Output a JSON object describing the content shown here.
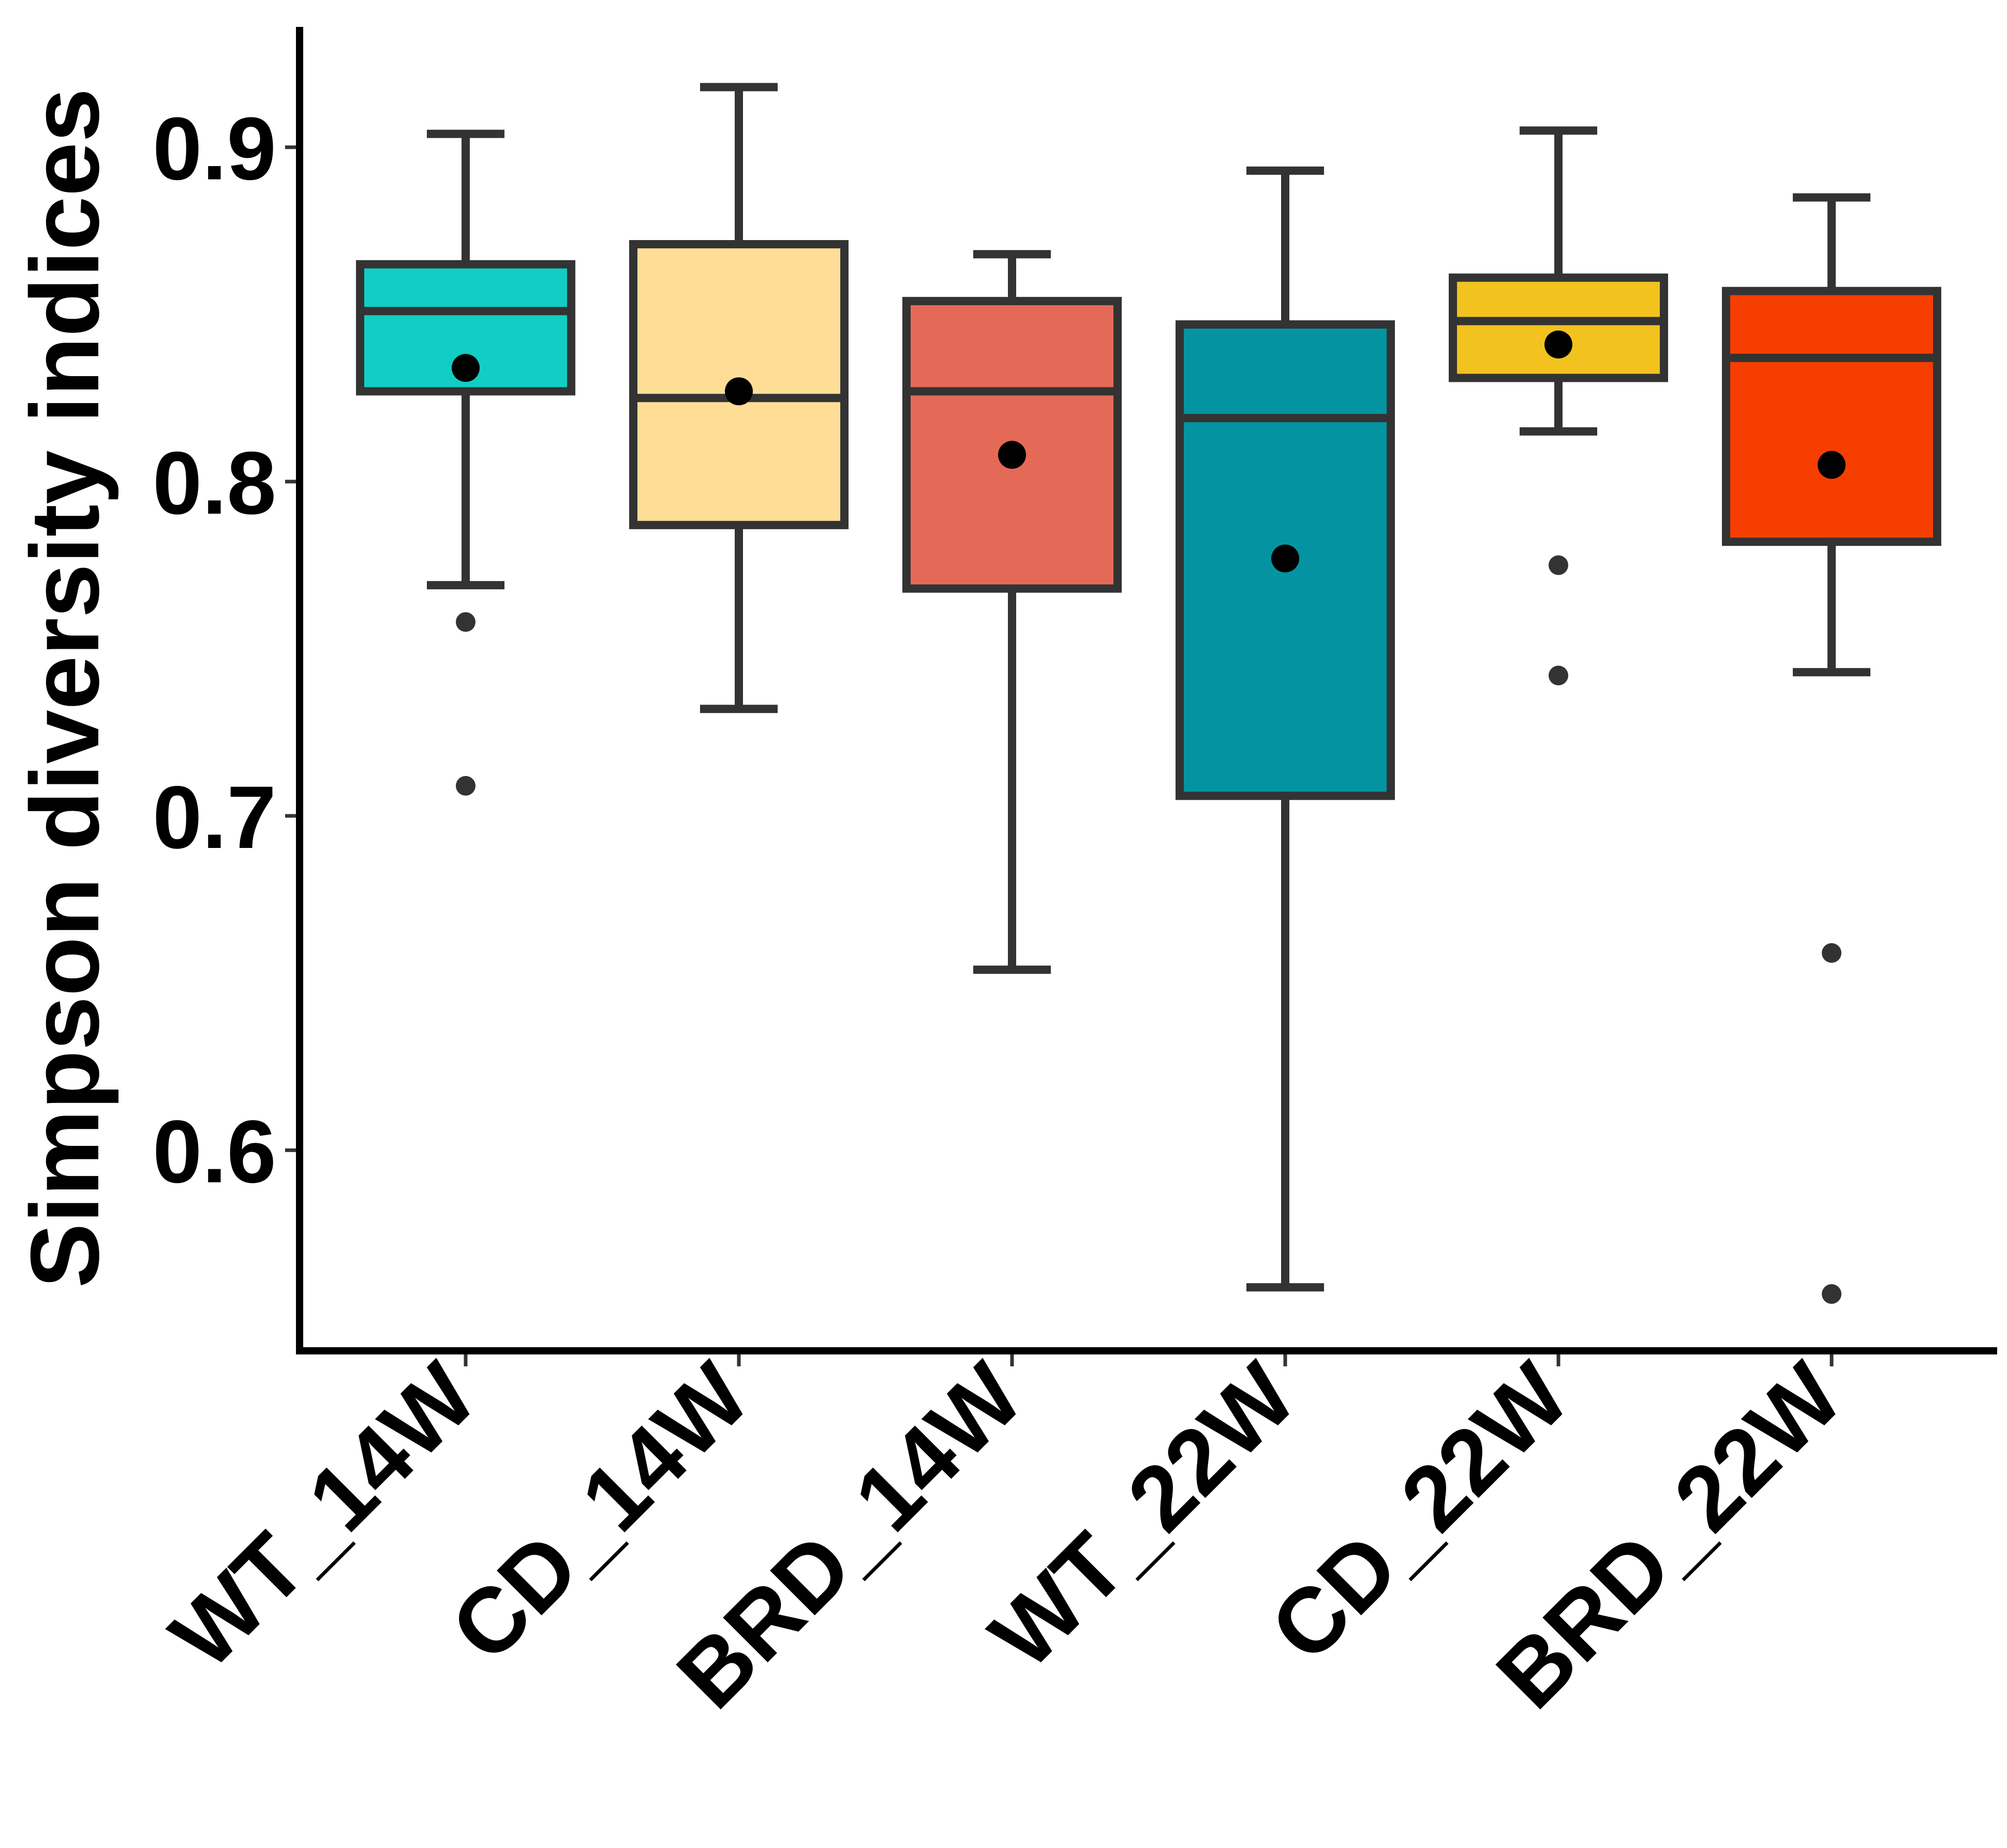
{
  "chart_data": {
    "type": "box",
    "title": "",
    "xlabel": "",
    "ylabel": "Simpson diversity indices",
    "ylim": [
      0.54,
      0.936
    ],
    "yticks": [
      {
        "value": 0.6,
        "label": "0.6"
      },
      {
        "value": 0.7,
        "label": "0.7"
      },
      {
        "value": 0.8,
        "label": "0.8"
      },
      {
        "value": 0.9,
        "label": "0.9"
      }
    ],
    "grid": false,
    "legend": "none",
    "categories": [
      "WT_14W",
      "CD_14W",
      "BRD_14W",
      "WT_22W",
      "CD_22W",
      "BRD_22W"
    ],
    "boxes": [
      {
        "category": "WT_14W",
        "color": "#12CDC4",
        "whisker_low": 0.769,
        "q1": 0.827,
        "median": 0.851,
        "q3": 0.865,
        "whisker_high": 0.904,
        "mean": 0.834,
        "outliers": [
          0.758,
          0.709
        ]
      },
      {
        "category": "CD_14W",
        "color": "#FEDD96",
        "whisker_low": 0.732,
        "q1": 0.787,
        "median": 0.825,
        "q3": 0.871,
        "whisker_high": 0.918,
        "mean": 0.827,
        "outliers": []
      },
      {
        "category": "BRD_14W",
        "color": "#E46A57",
        "whisker_low": 0.654,
        "q1": 0.768,
        "median": 0.827,
        "q3": 0.854,
        "whisker_high": 0.868,
        "mean": 0.808,
        "outliers": []
      },
      {
        "category": "WT_22W",
        "color": "#0494A1",
        "whisker_low": 0.559,
        "q1": 0.706,
        "median": 0.819,
        "q3": 0.847,
        "whisker_high": 0.893,
        "mean": 0.777,
        "outliers": []
      },
      {
        "category": "CD_22W",
        "color": "#F2C21E",
        "whisker_low": 0.815,
        "q1": 0.831,
        "median": 0.848,
        "q3": 0.861,
        "whisker_high": 0.905,
        "mean": 0.841,
        "outliers": [
          0.775,
          0.742
        ]
      },
      {
        "category": "BRD_22W",
        "color": "#F73E01",
        "whisker_low": 0.743,
        "q1": 0.782,
        "median": 0.837,
        "q3": 0.857,
        "whisker_high": 0.885,
        "mean": 0.805,
        "outliers": [
          0.659,
          0.557
        ]
      }
    ],
    "box_edge_color": "#333333",
    "mean_marker_color": "#000000",
    "outlier_color": "#333333"
  }
}
